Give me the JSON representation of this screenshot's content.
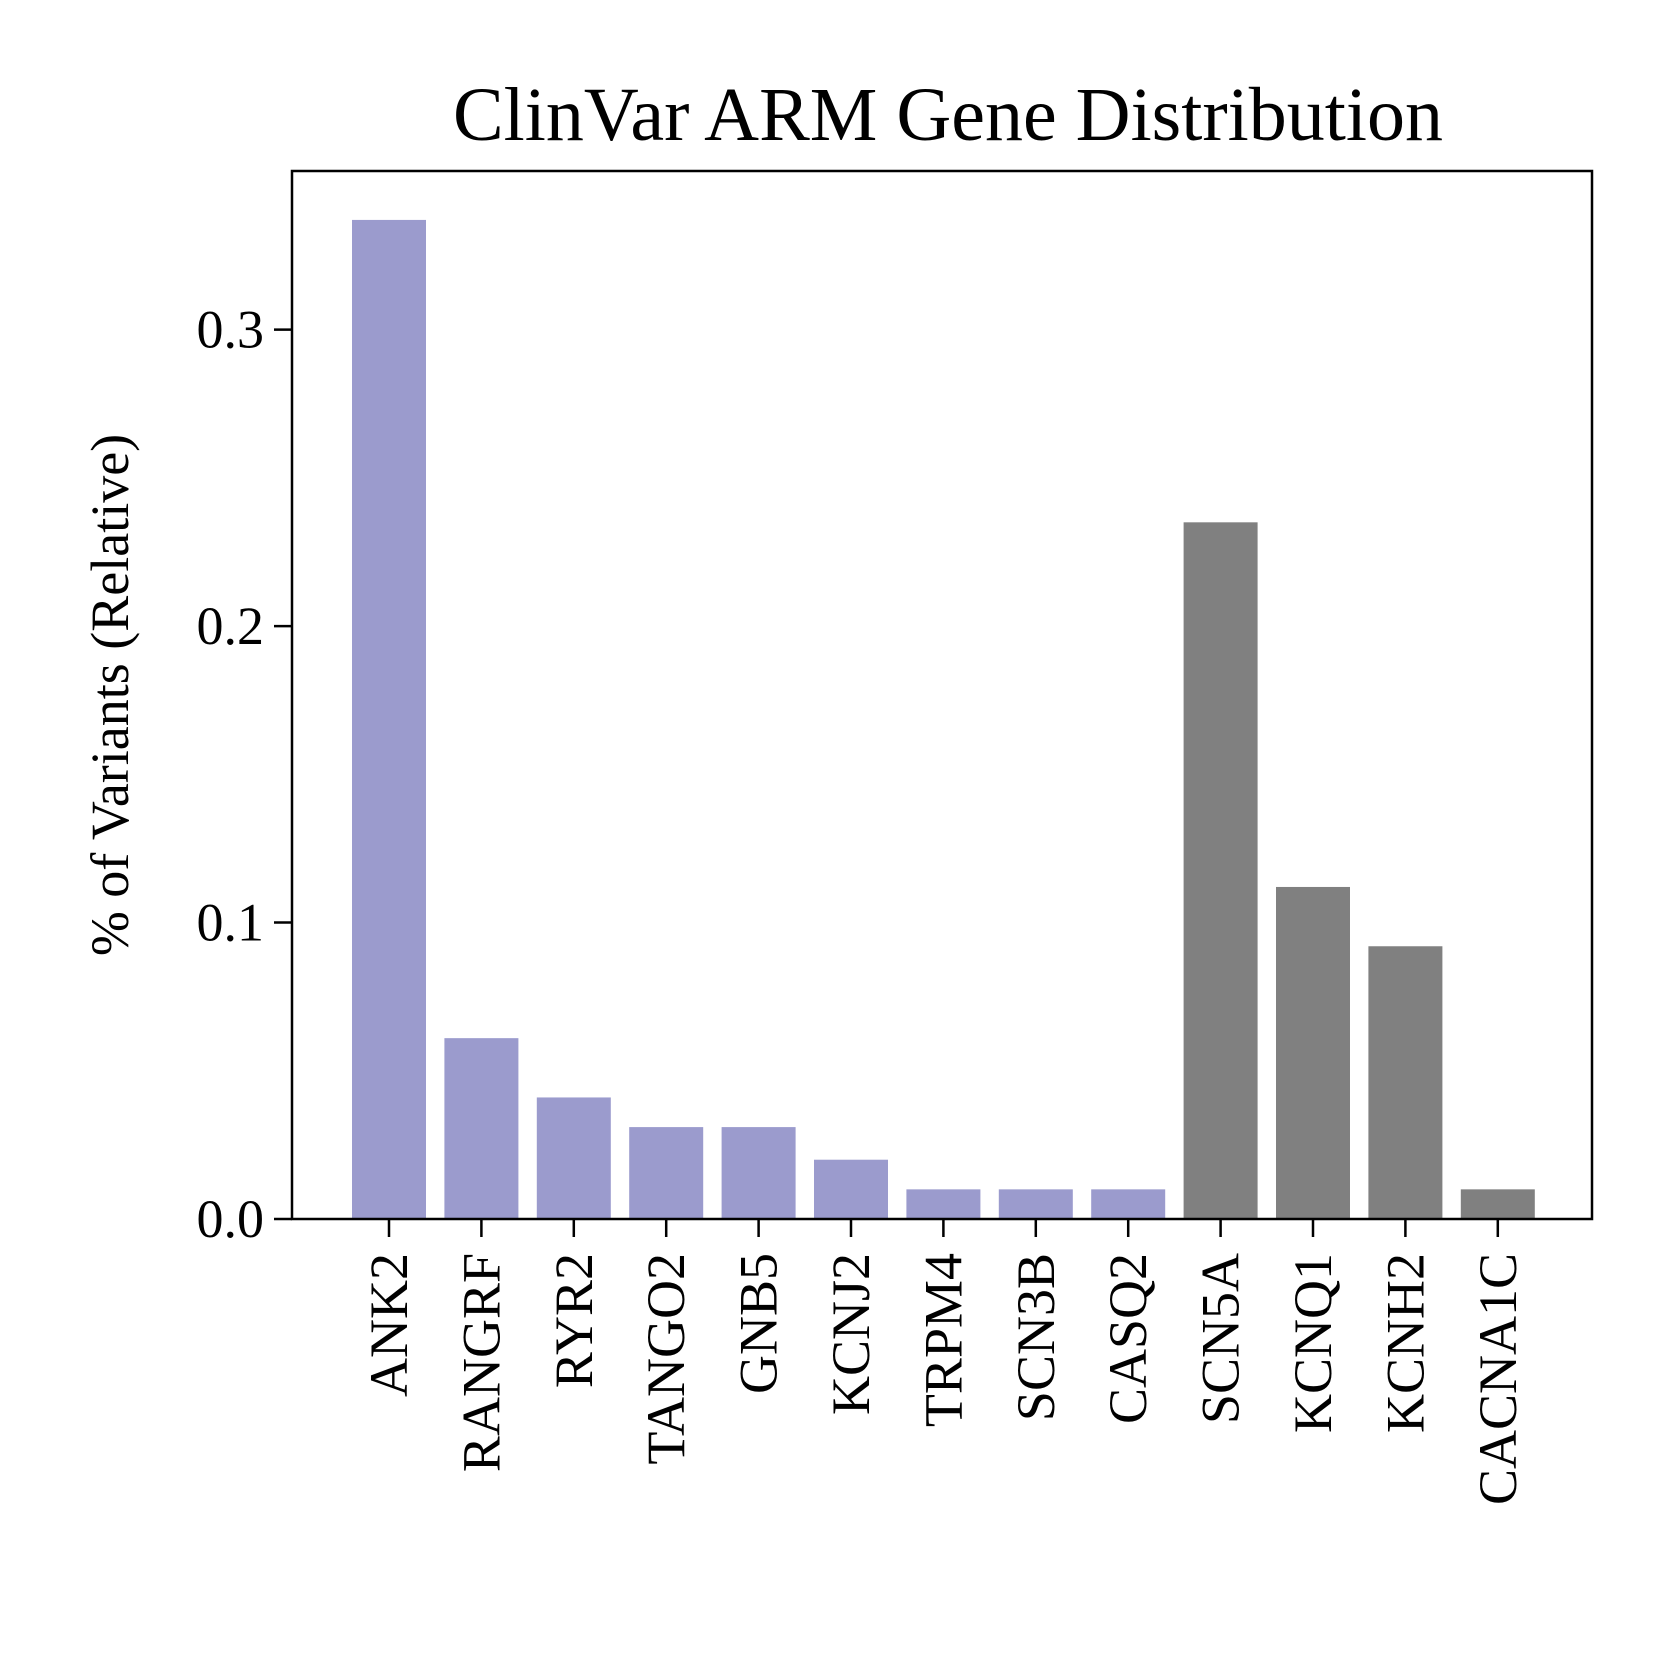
{
  "chart_data": {
    "type": "bar",
    "title": "ClinVar ARM Gene Distribution",
    "xlabel": "",
    "ylabel": "% of Variants (Relative)",
    "categories": [
      "ANK2",
      "RANGRF",
      "RYR2",
      "TANGO2",
      "GNB5",
      "KCNJ2",
      "TRPM4",
      "SCN3B",
      "CASQ2",
      "SCN5A",
      "KCNQ1",
      "KCNH2",
      "CACNA1C"
    ],
    "values": [
      0.337,
      0.061,
      0.041,
      0.031,
      0.031,
      0.02,
      0.01,
      0.01,
      0.01,
      0.235,
      0.112,
      0.092,
      0.01
    ],
    "bar_colors": [
      "#9b9bcd",
      "#9b9bcd",
      "#9b9bcd",
      "#9b9bcd",
      "#9b9bcd",
      "#9b9bcd",
      "#9b9bcd",
      "#9b9bcd",
      "#9b9bcd",
      "#808080",
      "#808080",
      "#808080",
      "#808080"
    ],
    "ylim": [
      0,
      0.3535
    ],
    "yticks": [
      0.0,
      0.1,
      0.2,
      0.3
    ],
    "ytick_labels": [
      "0.0",
      "0.1",
      "0.2",
      "0.3"
    ],
    "grid": false,
    "legend": "none"
  }
}
